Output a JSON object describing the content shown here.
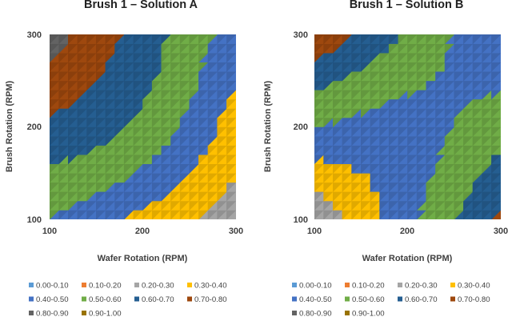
{
  "chart_data": [
    {
      "type": "heatmap",
      "subtype": "contour",
      "title": "Brush 1 – Solution A",
      "xlabel": "Wafer Rotation (RPM)",
      "ylabel": "Brush Rotation (RPM)",
      "x": [
        100,
        200,
        300
      ],
      "y": [
        100,
        200,
        300
      ],
      "xlim": [
        100,
        300
      ],
      "ylim": [
        100,
        300
      ],
      "x_ticks": [
        "100",
        "200",
        "300"
      ],
      "y_ticks": [
        "100",
        "200",
        "300"
      ],
      "grid_x": [
        100,
        110,
        120,
        130,
        140,
        150,
        160,
        170,
        180,
        190,
        200,
        210,
        220,
        230,
        240,
        250,
        260,
        270,
        280,
        290,
        300
      ],
      "grid_y": [
        100,
        110,
        120,
        130,
        140,
        150,
        160,
        170,
        180,
        190,
        200,
        210,
        220,
        230,
        240,
        250,
        260,
        270,
        280,
        290,
        300
      ],
      "surface_corners": {
        "x100_y100": 0.5,
        "x300_y100": 0.25,
        "x100_y300": 0.85,
        "x300_y300": 0.45
      },
      "surface_center": {
        "x": 200,
        "y": 200,
        "value": 0.52
      },
      "surface_curvature": 0.02
    },
    {
      "type": "heatmap",
      "subtype": "contour",
      "title": "Brush 1 – Solution B",
      "xlabel": "Wafer Rotation (RPM)",
      "ylabel": "Brush Rotation (RPM)",
      "x": [
        100,
        200,
        300
      ],
      "y": [
        100,
        200,
        300
      ],
      "xlim": [
        100,
        300
      ],
      "ylim": [
        100,
        300
      ],
      "x_ticks": [
        "100",
        "200",
        "300"
      ],
      "y_ticks": [
        "100",
        "200",
        "300"
      ],
      "grid_x": [
        100,
        110,
        120,
        130,
        140,
        150,
        160,
        170,
        180,
        190,
        200,
        210,
        220,
        230,
        240,
        250,
        260,
        270,
        280,
        290,
        300
      ],
      "grid_y": [
        100,
        110,
        120,
        130,
        140,
        150,
        160,
        170,
        180,
        190,
        200,
        210,
        220,
        230,
        240,
        250,
        260,
        270,
        280,
        290,
        300
      ],
      "surface_corners": {
        "x100_y100": 0.22,
        "x300_y100": 0.72,
        "x100_y300": 0.78,
        "x300_y300": 0.4
      },
      "surface_center": {
        "x": 200,
        "y": 200,
        "value": 0.38
      },
      "surface_curvature": -0.02
    }
  ],
  "legend": {
    "placement": "bottom",
    "items": [
      {
        "label": "0.00-0.10",
        "color": "#5b9bd5"
      },
      {
        "label": "0.10-0.20",
        "color": "#ed7d31"
      },
      {
        "label": "0.20-0.30",
        "color": "#a5a5a5"
      },
      {
        "label": "0.30-0.40",
        "color": "#ffc000"
      },
      {
        "label": "0.40-0.50",
        "color": "#4472c4"
      },
      {
        "label": "0.50-0.60",
        "color": "#70ad47"
      },
      {
        "label": "0.60-0.70",
        "color": "#255e91"
      },
      {
        "label": "0.70-0.80",
        "color": "#9e480e"
      },
      {
        "label": "0.80-0.90",
        "color": "#636363"
      },
      {
        "label": "0.90-1.00",
        "color": "#997300"
      }
    ]
  }
}
